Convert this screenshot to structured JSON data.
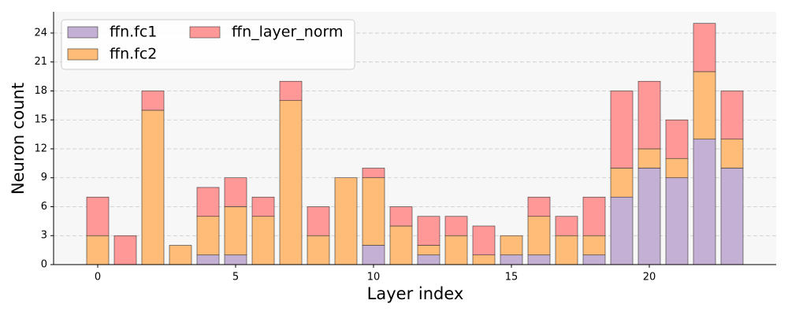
{
  "chart_data": {
    "type": "stacked_bar",
    "x_label": "Layer index",
    "y_label": "Neuron count",
    "x": [
      0,
      1,
      2,
      3,
      4,
      5,
      6,
      7,
      8,
      9,
      10,
      11,
      12,
      13,
      14,
      15,
      16,
      17,
      18,
      19,
      20,
      21,
      22,
      23
    ],
    "series": [
      {
        "name": "ffn.fc1",
        "color": "#c5b0d5",
        "values": [
          0,
          0,
          0,
          0,
          1,
          1,
          0,
          0,
          0,
          0,
          2,
          0,
          1,
          0,
          0,
          1,
          1,
          0,
          1,
          7,
          10,
          9,
          13,
          10
        ]
      },
      {
        "name": "ffn.fc2",
        "color": "#ffbb78",
        "values": [
          3,
          0,
          16,
          2,
          4,
          5,
          5,
          17,
          3,
          9,
          7,
          4,
          1,
          3,
          1,
          2,
          4,
          3,
          2,
          3,
          2,
          2,
          7,
          3
        ]
      },
      {
        "name": "ffn_layer_norm",
        "color": "#ff9896",
        "values": [
          4,
          3,
          2,
          0,
          3,
          3,
          2,
          2,
          3,
          0,
          1,
          2,
          3,
          2,
          3,
          0,
          2,
          2,
          4,
          8,
          7,
          4,
          5,
          5
        ]
      }
    ],
    "xlim": [
      -1.6,
      24.6
    ],
    "xticks": [
      0,
      5,
      10,
      15,
      20
    ],
    "ylim": [
      0,
      26.2
    ],
    "yticks": [
      0,
      3,
      6,
      9,
      12,
      15,
      18,
      21,
      24
    ],
    "grid": true,
    "legend": "upper left"
  }
}
